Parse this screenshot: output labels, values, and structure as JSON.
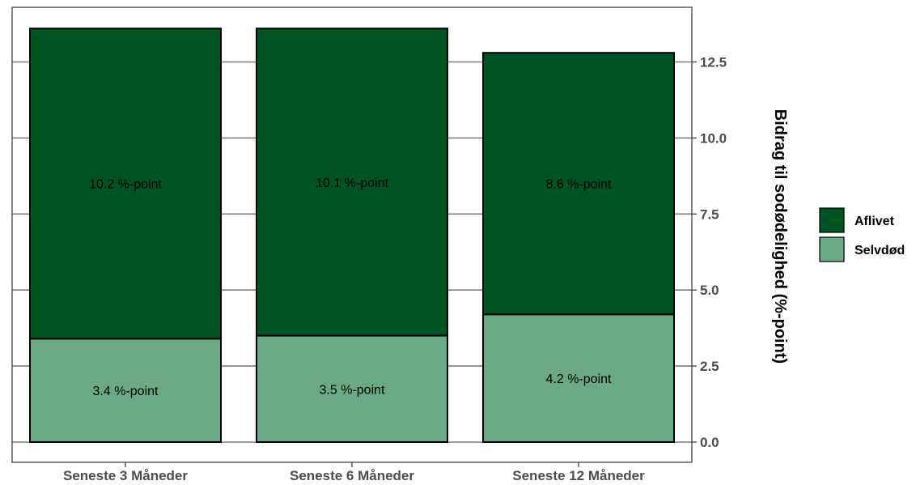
{
  "chart_data": {
    "type": "bar",
    "stacked": true,
    "categories": [
      "Seneste 3 Måneder",
      "Seneste 6 Måneder",
      "Seneste 12 Måneder"
    ],
    "series": [
      {
        "name": "Selvdød",
        "values": [
          3.4,
          3.5,
          4.2
        ],
        "labels": [
          "3.4 %-point",
          "3.5 %-point",
          "4.2 %-point"
        ],
        "color": "#6aa985"
      },
      {
        "name": "Aflivet",
        "values": [
          10.2,
          10.1,
          8.6
        ],
        "labels": [
          "10.2 %-point",
          "10.1 %-point",
          "8.6 %-point"
        ],
        "color": "#005323"
      }
    ],
    "legend": [
      "Aflivet",
      "Selvdød"
    ],
    "legend_position": "right",
    "ylabel": "Bidrag til sodødelighed (%-point)",
    "y_axis_side": "right",
    "yticks": [
      "0.0",
      "2.5",
      "5.0",
      "7.5",
      "10.0",
      "12.5"
    ],
    "ylim": [
      0,
      14.3
    ],
    "grid": "horizontal major"
  }
}
